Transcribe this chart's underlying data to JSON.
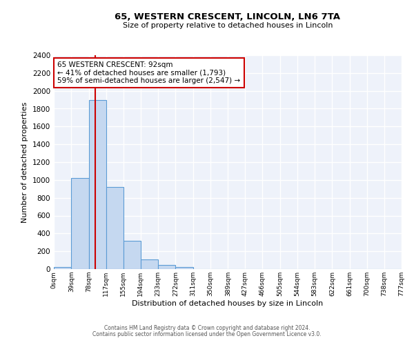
{
  "title": "65, WESTERN CRESCENT, LINCOLN, LN6 7TA",
  "subtitle": "Size of property relative to detached houses in Lincoln",
  "xlabel": "Distribution of detached houses by size in Lincoln",
  "ylabel": "Number of detached properties",
  "bar_values": [
    20,
    1020,
    1900,
    920,
    315,
    105,
    47,
    20,
    0,
    0,
    0,
    0,
    0,
    0,
    0,
    0,
    0,
    0,
    0,
    0
  ],
  "bin_labels": [
    "0sqm",
    "39sqm",
    "78sqm",
    "117sqm",
    "155sqm",
    "194sqm",
    "233sqm",
    "272sqm",
    "311sqm",
    "350sqm",
    "389sqm",
    "427sqm",
    "466sqm",
    "505sqm",
    "544sqm",
    "583sqm",
    "622sqm",
    "661sqm",
    "700sqm",
    "738sqm",
    "777sqm"
  ],
  "bin_edges": [
    0,
    39,
    78,
    117,
    155,
    194,
    233,
    272,
    311,
    350,
    389,
    427,
    466,
    505,
    544,
    583,
    622,
    661,
    700,
    738,
    777
  ],
  "bar_color": "#c5d8f0",
  "bar_edge_color": "#5b9bd5",
  "red_line_x": 92,
  "annotation_line1": "65 WESTERN CRESCENT: 92sqm",
  "annotation_line2": "← 41% of detached houses are smaller (1,793)",
  "annotation_line3": "59% of semi-detached houses are larger (2,547) →",
  "annotation_box_color": "#ffffff",
  "annotation_box_edge": "#cc0000",
  "ylim": [
    0,
    2400
  ],
  "yticks": [
    0,
    200,
    400,
    600,
    800,
    1000,
    1200,
    1400,
    1600,
    1800,
    2000,
    2200,
    2400
  ],
  "footer_line1": "Contains HM Land Registry data © Crown copyright and database right 2024.",
  "footer_line2": "Contains public sector information licensed under the Open Government Licence v3.0.",
  "background_color": "#eef2fa",
  "grid_color": "#ffffff",
  "fig_bg": "#ffffff"
}
